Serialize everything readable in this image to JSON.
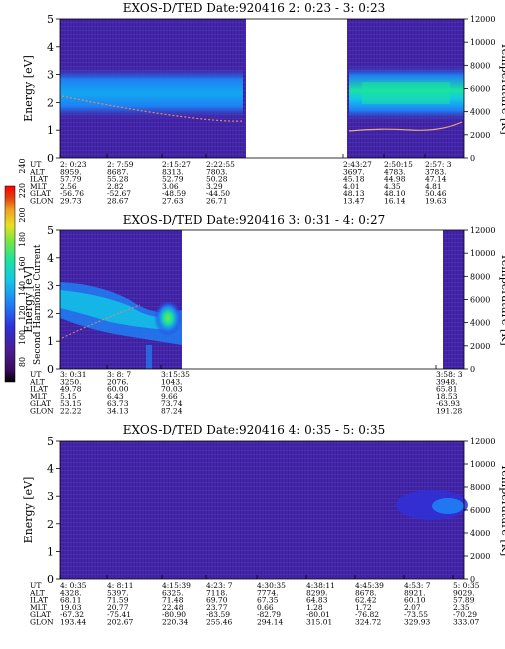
{
  "colorbar": {
    "title": "Second Harmonic Current",
    "ticks": [
      "80",
      "100",
      "120",
      "140",
      "160",
      "180",
      "200",
      "220",
      "240"
    ],
    "colors": [
      "#000000",
      "#3a0a5e",
      "#4b1d8f",
      "#3030d8",
      "#1f7ff5",
      "#12c8e6",
      "#19e3a0",
      "#7ae640",
      "#e8e020",
      "#f0a020",
      "#e04010",
      "#ff0000"
    ]
  },
  "chart_data": [
    {
      "type": "heatmap",
      "title": "EXOS-D/TED   Date:920416  2: 0:23 - 3: 0:23",
      "ylabel": "Energy [eV]",
      "y2label": "Temperature [K]",
      "ylim": [
        0,
        5
      ],
      "y2lim": [
        0,
        12000
      ],
      "yticks": [
        "0",
        "1",
        "2",
        "3",
        "4",
        "5"
      ],
      "y2ticks": [
        "0",
        "2000",
        "4000",
        "6000",
        "8000",
        "10000",
        "12000"
      ],
      "row_labels": [
        "UT",
        "ALT",
        "ILAT",
        "MLT",
        "GLAT",
        "GLON"
      ],
      "columns": [
        {
          "UT": "2: 0:23",
          "ALT": "8959.",
          "ILAT": "57.79",
          "MLT": "2.56",
          "GLAT": "-56.76",
          "GLON": "29.73"
        },
        {
          "UT": "2: 7:59",
          "ALT": "8687.",
          "ILAT": "55.28",
          "MLT": "2.82",
          "GLAT": "-52.67",
          "GLON": "28.67"
        },
        {
          "UT": "2:15:27",
          "ALT": "8313.",
          "ILAT": "52.79",
          "MLT": "3.06",
          "GLAT": "-48.59",
          "GLON": "27.63"
        },
        {
          "UT": "2:22:55",
          "ALT": "7803.",
          "ILAT": "50.28",
          "MLT": "3.29",
          "GLAT": "-44.50",
          "GLON": "26.71"
        },
        {
          "UT": "2:43:27",
          "ALT": "3697.",
          "ILAT": "45.18",
          "MLT": "4.01",
          "GLAT": "48.13",
          "GLON": "13.47"
        },
        {
          "UT": "2:50:15",
          "ALT": "4783.",
          "ILAT": "44.98",
          "MLT": "4.35",
          "GLAT": "48.10",
          "GLON": "16.14"
        },
        {
          "UT": "2:57: 3",
          "ALT": "3783.",
          "ILAT": "47.14",
          "MLT": "4.81",
          "GLAT": "50.46",
          "GLON": "19.63"
        }
      ]
    },
    {
      "type": "heatmap",
      "title": "EXOS-D/TED   Date:920416  3: 0:31 - 4: 0:27",
      "ylabel": "Energy [eV]",
      "y2label": "Temperature [K]",
      "ylim": [
        0,
        5
      ],
      "y2lim": [
        0,
        12000
      ],
      "yticks": [
        "0",
        "1",
        "2",
        "3",
        "4",
        "5"
      ],
      "y2ticks": [
        "0",
        "2000",
        "4000",
        "6000",
        "8000",
        "10000",
        "12000"
      ],
      "row_labels": [
        "UT",
        "ALT",
        "ILAT",
        "MLT",
        "GLAT",
        "GLON"
      ],
      "columns": [
        {
          "UT": "3: 0:31",
          "ALT": "3250.",
          "ILAT": "49.78",
          "MLT": "5.15",
          "GLAT": "53.15",
          "GLON": "22.22"
        },
        {
          "UT": "3: 8: 7",
          "ALT": "2076.",
          "ILAT": "60.00",
          "MLT": "6.43",
          "GLAT": "63.73",
          "GLON": "34.13"
        },
        {
          "UT": "3:15:35",
          "ALT": "1043.",
          "ILAT": "70.03",
          "MLT": "9.66",
          "GLAT": "73.74",
          "GLON": "87.24"
        },
        {
          "UT": "3:58: 3",
          "ALT": "3948.",
          "ILAT": "65.81",
          "MLT": "18.53",
          "GLAT": "-63.93",
          "GLON": "191.28"
        }
      ]
    },
    {
      "type": "heatmap",
      "title": "EXOS-D/TED   Date:920416  4: 0:35 - 5: 0:35",
      "ylabel": "Energy [eV]",
      "y2label": "Temperature [K]",
      "ylim": [
        0,
        5
      ],
      "y2lim": [
        0,
        12000
      ],
      "yticks": [
        "0",
        "1",
        "2",
        "3",
        "4",
        "5"
      ],
      "y2ticks": [
        "0",
        "2000",
        "4000",
        "6000",
        "8000",
        "10000",
        "12000"
      ],
      "row_labels": [
        "UT",
        "ALT",
        "ILAT",
        "MLT",
        "GLAT",
        "GLON"
      ],
      "columns": [
        {
          "UT": "4: 0:35",
          "ALT": "4328.",
          "ILAT": "68.11",
          "MLT": "19.03",
          "GLAT": "-67.32",
          "GLON": "193.44"
        },
        {
          "UT": "4: 8:11",
          "ALT": "5397.",
          "ILAT": "71.59",
          "MLT": "20.77",
          "GLAT": "-75.41",
          "GLON": "202.67"
        },
        {
          "UT": "4:15:39",
          "ALT": "6325.",
          "ILAT": "71.48",
          "MLT": "22.48",
          "GLAT": "-80.90",
          "GLON": "220.34"
        },
        {
          "UT": "4:23: 7",
          "ALT": "7118.",
          "ILAT": "69.70",
          "MLT": "23.77",
          "GLAT": "-83.59",
          "GLON": "255.46"
        },
        {
          "UT": "4:30:35",
          "ALT": "7774.",
          "ILAT": "67.35",
          "MLT": "0.66",
          "GLAT": "-82.79",
          "GLON": "294.14"
        },
        {
          "UT": "4:38:11",
          "ALT": "8299.",
          "ILAT": "64.83",
          "MLT": "1.28",
          "GLAT": "-80.01",
          "GLON": "315.01"
        },
        {
          "UT": "4:45:39",
          "ALT": "8678.",
          "ILAT": "62.42",
          "MLT": "1.72",
          "GLAT": "-76.82",
          "GLON": "324.72"
        },
        {
          "UT": "4:53: 7",
          "ALT": "8921.",
          "ILAT": "60.10",
          "MLT": "2.07",
          "GLAT": "-73.55",
          "GLON": "329.93"
        },
        {
          "UT": "5: 0:35",
          "ALT": "9029.",
          "ILAT": "57.89",
          "MLT": "2.35",
          "GLAT": "-70.29",
          "GLON": "333.07"
        }
      ]
    }
  ]
}
